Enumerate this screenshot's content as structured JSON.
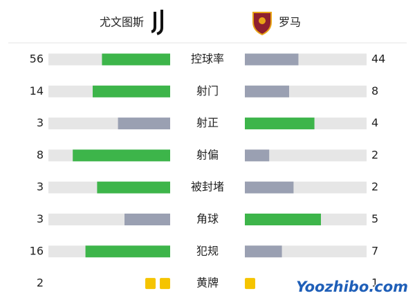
{
  "header": {
    "home": "尤文图斯",
    "away": "罗马"
  },
  "colors": {
    "higher": "#3db54a",
    "lower": "#9aa0b2",
    "track": "#e6e6e6",
    "card": "#f5c400"
  },
  "stats": [
    {
      "label": "控球率",
      "home": 56,
      "away": 44
    },
    {
      "label": "射门",
      "home": 14,
      "away": 8
    },
    {
      "label": "射正",
      "home": 3,
      "away": 4
    },
    {
      "label": "射偏",
      "home": 8,
      "away": 2
    },
    {
      "label": "被封堵",
      "home": 3,
      "away": 2
    },
    {
      "label": "角球",
      "home": 3,
      "away": 5
    },
    {
      "label": "犯规",
      "home": 16,
      "away": 7
    }
  ],
  "cards": {
    "label": "黄牌",
    "home": 2,
    "away": 1
  },
  "watermark": "Yoozhibo.com"
}
